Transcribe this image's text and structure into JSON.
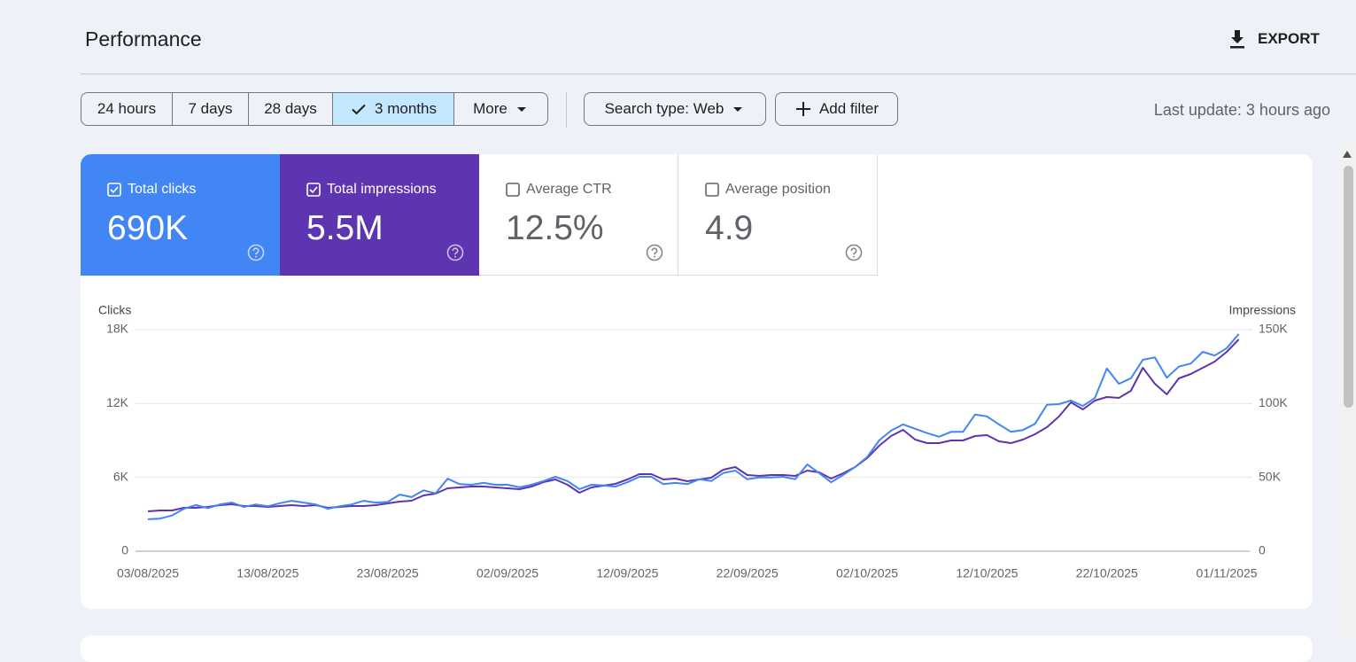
{
  "header": {
    "title": "Performance",
    "export": "EXPORT"
  },
  "filters": {
    "ranges": [
      "24 hours",
      "7 days",
      "28 days",
      "3 months",
      "More"
    ],
    "selected": 3,
    "search_type": "Search type: Web",
    "add_filter": "Add filter",
    "last_update": "Last update: 3 hours ago"
  },
  "metrics": [
    {
      "label": "Total clicks",
      "value": "690K",
      "checked": true,
      "color": "#4285f4"
    },
    {
      "label": "Total impressions",
      "value": "5.5M",
      "checked": true,
      "color": "#5e35b1"
    },
    {
      "label": "Average CTR",
      "value": "12.5%",
      "checked": false,
      "color": "#00897b"
    },
    {
      "label": "Average position",
      "value": "4.9",
      "checked": false,
      "color": "#e8710a"
    }
  ],
  "chart_data": {
    "type": "line",
    "y_label": "Clicks",
    "y2_label": "Impressions",
    "grid": true,
    "x": [
      "03/08/2025",
      "04/08/2025",
      "05/08/2025",
      "06/08/2025",
      "07/08/2025",
      "08/08/2025",
      "09/08/2025",
      "10/08/2025",
      "11/08/2025",
      "12/08/2025",
      "13/08/2025",
      "14/08/2025",
      "15/08/2025",
      "16/08/2025",
      "17/08/2025",
      "18/08/2025",
      "19/08/2025",
      "20/08/2025",
      "21/08/2025",
      "22/08/2025",
      "23/08/2025",
      "24/08/2025",
      "25/08/2025",
      "26/08/2025",
      "27/08/2025",
      "28/08/2025",
      "29/08/2025",
      "30/08/2025",
      "31/08/2025",
      "01/09/2025",
      "02/09/2025",
      "03/09/2025",
      "04/09/2025",
      "05/09/2025",
      "06/09/2025",
      "07/09/2025",
      "08/09/2025",
      "09/09/2025",
      "10/09/2025",
      "11/09/2025",
      "12/09/2025",
      "13/09/2025",
      "14/09/2025",
      "15/09/2025",
      "16/09/2025",
      "17/09/2025",
      "18/09/2025",
      "19/09/2025",
      "20/09/2025",
      "21/09/2025",
      "22/09/2025",
      "23/09/2025",
      "24/09/2025",
      "25/09/2025",
      "26/09/2025",
      "27/09/2025",
      "28/09/2025",
      "29/09/2025",
      "30/09/2025",
      "01/10/2025",
      "02/10/2025",
      "03/10/2025",
      "04/10/2025",
      "05/10/2025",
      "06/10/2025",
      "07/10/2025",
      "08/10/2025",
      "09/10/2025",
      "10/10/2025",
      "11/10/2025",
      "12/10/2025",
      "13/10/2025",
      "14/10/2025",
      "15/10/2025",
      "16/10/2025",
      "17/10/2025",
      "18/10/2025",
      "19/10/2025",
      "20/10/2025",
      "21/10/2025",
      "22/10/2025",
      "23/10/2025",
      "24/10/2025",
      "25/10/2025",
      "26/10/2025",
      "27/10/2025",
      "28/10/2025",
      "29/10/2025",
      "30/10/2025",
      "31/10/2025",
      "01/11/2025",
      "02/11/2025"
    ],
    "xticks": [
      "03/08/2025",
      "13/08/2025",
      "23/08/2025",
      "02/09/2025",
      "12/09/2025",
      "22/09/2025",
      "02/10/2025",
      "12/10/2025",
      "22/10/2025",
      "01/11/2025"
    ],
    "ylim": [
      0,
      18000
    ],
    "yticks": [
      0,
      {
        "value": 6000,
        "label": "6K"
      },
      {
        "value": 12000,
        "label": "12K"
      },
      {
        "value": 18000,
        "label": "18K"
      }
    ],
    "y2lim": [
      0,
      150000
    ],
    "y2ticks": [
      0,
      {
        "value": 50000,
        "label": "50K"
      },
      {
        "value": 100000,
        "label": "100K"
      },
      {
        "value": 150000,
        "label": "150K"
      }
    ],
    "series": [
      {
        "color": "#4285f4",
        "values": [
          2600,
          2650,
          2900,
          3450,
          3750,
          3500,
          3800,
          3950,
          3600,
          3800,
          3650,
          3900,
          4100,
          3950,
          3800,
          3450,
          3650,
          3800,
          4100,
          3950,
          4000,
          4600,
          4400,
          4950,
          4700,
          5900,
          5450,
          5400,
          5550,
          5400,
          5400,
          5200,
          5400,
          5700,
          6050,
          5700,
          5050,
          5400,
          5350,
          5250,
          5600,
          6050,
          6050,
          5450,
          5550,
          5450,
          5850,
          5700,
          6350,
          6550,
          5850,
          6000,
          6000,
          6050,
          5850,
          7050,
          6350,
          5600,
          6200,
          6850,
          7650,
          9000,
          9800,
          10300,
          9950,
          9600,
          9300,
          9700,
          9700,
          11100,
          10950,
          10300,
          9700,
          9850,
          10350,
          11900,
          11950,
          12250,
          11800,
          12450,
          14850,
          13600,
          14050,
          15550,
          15750,
          14100,
          15000,
          15250,
          16200,
          15900,
          16500,
          17650
        ]
      },
      {
        "color": "#5e35b1",
        "axis": "y2",
        "values": [
          27000,
          27600,
          27600,
          29400,
          29400,
          30000,
          31200,
          31800,
          30600,
          30600,
          30000,
          30600,
          31200,
          30600,
          31200,
          29400,
          30000,
          30600,
          30600,
          31200,
          32400,
          33600,
          34200,
          37800,
          39000,
          42600,
          43200,
          43800,
          43800,
          43200,
          42600,
          42000,
          43800,
          46800,
          48600,
          45000,
          39600,
          43200,
          44400,
          45600,
          48600,
          52200,
          52200,
          48600,
          49200,
          47400,
          48600,
          49800,
          55200,
          57000,
          51600,
          51000,
          51600,
          51600,
          51000,
          54600,
          53400,
          49200,
          52800,
          57000,
          63000,
          71400,
          78000,
          82200,
          75600,
          73200,
          73200,
          75000,
          75000,
          78000,
          78600,
          74400,
          73200,
          75600,
          79200,
          84000,
          91200,
          100800,
          96000,
          102000,
          104400,
          103800,
          108600,
          124200,
          113400,
          106200,
          117000,
          120000,
          124200,
          128400,
          135000,
          143400
        ]
      }
    ]
  }
}
